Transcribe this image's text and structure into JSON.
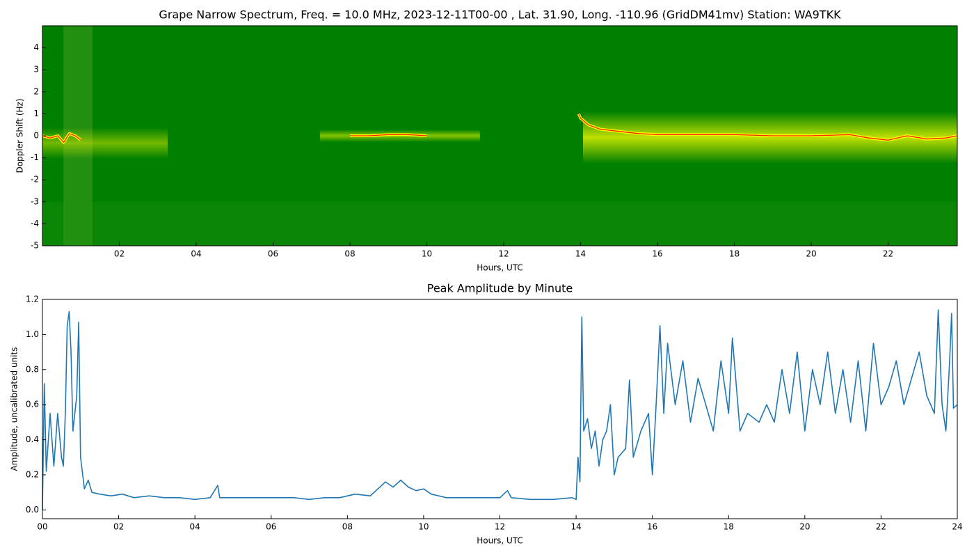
{
  "chart_data": [
    {
      "type": "spectrogram",
      "title": "Grape Narrow Spectrum, Freq. = 10.0 MHz, 2023-12-11T00-00 , Lat.  31.90, Long. -110.96 (GridDM41mv) Station: WA9TKK",
      "x_label": "Hours, UTC",
      "y_label": "Doppler Shift (Hz)",
      "xlim": [
        0,
        23.8
      ],
      "ylim": [
        -5,
        5
      ],
      "xticks": [
        {
          "value": 2,
          "label": "02"
        },
        {
          "value": 4,
          "label": "04"
        },
        {
          "value": 6,
          "label": "06"
        },
        {
          "value": 8,
          "label": "08"
        },
        {
          "value": 10,
          "label": "10"
        },
        {
          "value": 12,
          "label": "12"
        },
        {
          "value": 14,
          "label": "14"
        },
        {
          "value": 16,
          "label": "16"
        },
        {
          "value": 18,
          "label": "18"
        },
        {
          "value": 20,
          "label": "20"
        },
        {
          "value": 22,
          "label": "22"
        }
      ],
      "yticks": [
        -5,
        -4,
        -3,
        -2,
        -1,
        0,
        1,
        2,
        3,
        4
      ],
      "color": "#ff2000",
      "x": [
        0,
        0.2,
        0.4,
        0.55,
        0.7,
        0.85,
        1.0,
        1.1,
        8.0,
        8.5,
        9.0,
        9.5,
        10.0,
        10.5,
        13.95,
        14.0,
        14.2,
        14.5,
        15.0,
        15.5,
        16.0,
        17.0,
        18.0,
        19.0,
        20.0,
        21.0,
        21.5,
        22.0,
        22.5,
        23.0,
        23.5,
        23.8
      ],
      "values": [
        0,
        -0.1,
        0,
        -0.3,
        0.1,
        0,
        -0.2,
        null,
        0,
        0,
        0.05,
        0.05,
        0,
        null,
        1.0,
        0.8,
        0.5,
        0.3,
        0.2,
        0.1,
        0.05,
        0.05,
        0.05,
        0,
        0,
        0.05,
        -0.1,
        -0.2,
        0,
        -0.15,
        -0.1,
        0
      ]
    },
    {
      "type": "line",
      "title": "Peak Amplitude by Minute",
      "x_label": "Hours, UTC",
      "y_label": "Amplitude, uncalibrated units",
      "xlim": [
        0,
        24
      ],
      "ylim": [
        -0.05,
        1.2
      ],
      "xticks": [
        {
          "value": 0,
          "label": "00"
        },
        {
          "value": 2,
          "label": "02"
        },
        {
          "value": 4,
          "label": "04"
        },
        {
          "value": 6,
          "label": "06"
        },
        {
          "value": 8,
          "label": "08"
        },
        {
          "value": 10,
          "label": "10"
        },
        {
          "value": 12,
          "label": "12"
        },
        {
          "value": 14,
          "label": "14"
        },
        {
          "value": 16,
          "label": "16"
        },
        {
          "value": 18,
          "label": "18"
        },
        {
          "value": 20,
          "label": "20"
        },
        {
          "value": 22,
          "label": "22"
        },
        {
          "value": 24,
          "label": "24"
        }
      ],
      "yticks": [
        {
          "value": 0,
          "label": "0.0"
        },
        0.2,
        0.4,
        0.6,
        0.8,
        {
          "value": 1,
          "label": "1.0"
        },
        1.2
      ],
      "color": "#1f77b4",
      "x": [
        0,
        0.05,
        0.1,
        0.2,
        0.3,
        0.4,
        0.5,
        0.55,
        0.6,
        0.65,
        0.7,
        0.75,
        0.8,
        0.9,
        0.95,
        1.0,
        1.1,
        1.2,
        1.3,
        1.5,
        1.8,
        2.1,
        2.4,
        2.8,
        3.2,
        3.6,
        4.0,
        4.4,
        4.6,
        4.65,
        5.0,
        5.4,
        5.8,
        6.2,
        6.6,
        7.0,
        7.4,
        7.8,
        8.2,
        8.6,
        8.8,
        9.0,
        9.2,
        9.4,
        9.6,
        9.8,
        10.0,
        10.2,
        10.6,
        11.0,
        11.5,
        12.0,
        12.2,
        12.3,
        12.8,
        13.4,
        13.9,
        14.0,
        14.05,
        14.1,
        14.15,
        14.2,
        14.3,
        14.4,
        14.5,
        14.6,
        14.7,
        14.8,
        14.9,
        15.0,
        15.1,
        15.3,
        15.4,
        15.5,
        15.7,
        15.9,
        16.0,
        16.1,
        16.2,
        16.3,
        16.4,
        16.6,
        16.8,
        17.0,
        17.2,
        17.4,
        17.6,
        17.8,
        18.0,
        18.1,
        18.3,
        18.5,
        18.8,
        19.0,
        19.2,
        19.4,
        19.6,
        19.8,
        20.0,
        20.2,
        20.4,
        20.6,
        20.8,
        21.0,
        21.2,
        21.4,
        21.6,
        21.8,
        22.0,
        22.2,
        22.4,
        22.6,
        22.8,
        23.0,
        23.2,
        23.4,
        23.5,
        23.6,
        23.7,
        23.8,
        23.85,
        23.9,
        24.0
      ],
      "values": [
        0.0,
        0.72,
        0.22,
        0.55,
        0.25,
        0.55,
        0.3,
        0.25,
        0.55,
        1.05,
        1.13,
        0.9,
        0.45,
        0.65,
        1.07,
        0.3,
        0.12,
        0.17,
        0.1,
        0.09,
        0.08,
        0.09,
        0.07,
        0.08,
        0.07,
        0.07,
        0.06,
        0.07,
        0.14,
        0.07,
        0.07,
        0.07,
        0.07,
        0.07,
        0.07,
        0.06,
        0.07,
        0.07,
        0.09,
        0.08,
        0.12,
        0.16,
        0.13,
        0.17,
        0.13,
        0.11,
        0.12,
        0.09,
        0.07,
        0.07,
        0.07,
        0.07,
        0.11,
        0.07,
        0.06,
        0.06,
        0.07,
        0.06,
        0.3,
        0.16,
        1.1,
        0.45,
        0.52,
        0.35,
        0.45,
        0.25,
        0.4,
        0.45,
        0.6,
        0.2,
        0.3,
        0.35,
        0.74,
        0.3,
        0.45,
        0.55,
        0.2,
        0.6,
        1.05,
        0.55,
        0.95,
        0.6,
        0.85,
        0.5,
        0.75,
        0.6,
        0.45,
        0.85,
        0.55,
        0.98,
        0.45,
        0.55,
        0.5,
        0.6,
        0.5,
        0.8,
        0.55,
        0.9,
        0.45,
        0.8,
        0.6,
        0.9,
        0.55,
        0.8,
        0.5,
        0.85,
        0.45,
        0.95,
        0.6,
        0.7,
        0.85,
        0.6,
        0.75,
        0.9,
        0.65,
        0.55,
        1.14,
        0.6,
        0.45,
        0.85,
        1.12,
        0.58,
        0.6
      ]
    }
  ]
}
